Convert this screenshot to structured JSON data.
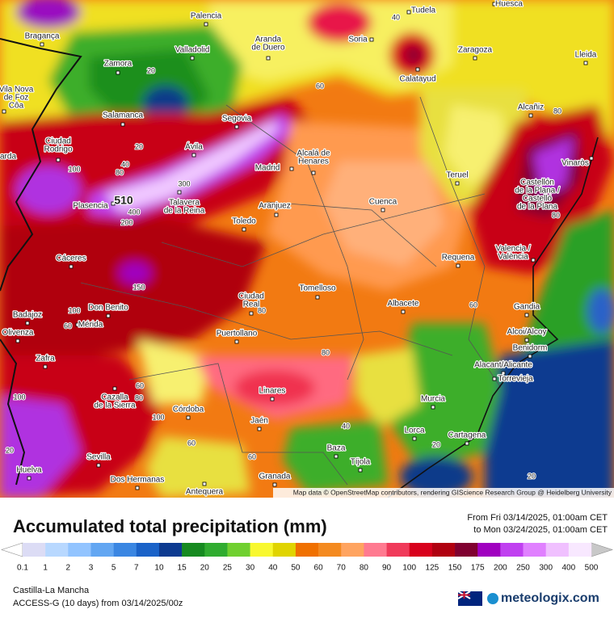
{
  "title": "Accumulated total precipitation (mm)",
  "date_range": [
    "From Fri 03/14/2025, 01:00am CET",
    "to Mon 03/24/2025, 01:00am CET"
  ],
  "region": "Castilla-La Mancha",
  "model_run": "ACCESS-G (10 days) from 03/14/2025/00z",
  "brand": "meteologix.com",
  "attribution": "Map data © OpenStreetMap contributors, rendering GIScience Research Group @ Heidelberg University",
  "legend": {
    "labels": [
      0.1,
      1,
      2,
      3,
      5,
      7,
      10,
      15,
      20,
      25,
      30,
      40,
      50,
      60,
      70,
      80,
      90,
      100,
      125,
      150,
      175,
      200,
      250,
      300,
      400,
      500
    ],
    "colors": [
      "#dcdcf5",
      "#b8d8ff",
      "#92c4ff",
      "#62a6f2",
      "#3a86e2",
      "#1a62c8",
      "#0c3a90",
      "#168a20",
      "#30ac30",
      "#70d030",
      "#f8f830",
      "#e0d400",
      "#f07000",
      "#f48a20",
      "#ffa460",
      "#ff7a90",
      "#f03a5a",
      "#d8001c",
      "#b00010",
      "#800030",
      "#a000c0",
      "#c040f0",
      "#e080ff",
      "#f0c0ff",
      "#f8e8ff"
    ],
    "under_color": "#ffffff",
    "over_color": "#c8c8c8"
  },
  "cities": [
    [
      "Palencia"
    ],
    [
      "Bragança"
    ],
    [
      "Valladolid"
    ],
    [
      "Aranda",
      "de Duero"
    ],
    [
      "Soria"
    ],
    [
      "Tudela"
    ],
    [
      "Huesca"
    ],
    [
      "Zaragoza"
    ],
    [
      "Lleida"
    ],
    [
      "Zamora"
    ],
    [
      "Vila Nova",
      "de Foz",
      "Côa"
    ],
    [
      "Calatayud"
    ],
    [
      "Salamanca"
    ],
    [
      "Segovia"
    ],
    [
      "Alcañiz"
    ],
    [
      "Ciudad",
      "Rodrigo"
    ],
    [
      "Ávila"
    ],
    [
      "Alcalá de",
      "Henares"
    ],
    [
      "Madrid"
    ],
    [
      "Teruel"
    ],
    [
      "Vinaròs"
    ],
    [
      "Castellón",
      "de la Plana /",
      "Castelló",
      "de la Plana"
    ],
    [
      "Plasencia"
    ],
    [
      "Talavera",
      "de la Reina"
    ],
    [
      "Aranjuez"
    ],
    [
      "Cuenca"
    ],
    [
      "Toledo"
    ],
    [
      "Cáceres"
    ],
    [
      "Requena"
    ],
    [
      "Valencia /",
      "València"
    ],
    [
      "Tomelloso"
    ],
    [
      "Ciudad",
      "Real"
    ],
    [
      "Albacete"
    ],
    [
      "Badajoz"
    ],
    [
      "Don Benito"
    ],
    [
      "Mérida"
    ],
    [
      "Gandia"
    ],
    [
      "Olivenza"
    ],
    [
      "Puertollano"
    ],
    [
      "Alcoi/Alcoy"
    ],
    [
      "Benidorm"
    ],
    [
      "Zafra"
    ],
    [
      "Alacant/Alicante"
    ],
    [
      "Torrevieja"
    ],
    [
      "Linares"
    ],
    [
      "Murcia"
    ],
    [
      "Cazalla",
      "de la Sierra"
    ],
    [
      "Córdoba"
    ],
    [
      "Jaén"
    ],
    [
      "Lorca"
    ],
    [
      "Cartagena"
    ],
    [
      "Baza"
    ],
    [
      "Sevilla"
    ],
    [
      "Tíjola"
    ],
    [
      "Huelva"
    ],
    [
      "Dos Hermanas"
    ],
    [
      "Granada"
    ],
    [
      "Antequera"
    ],
    [
      "arda"
    ]
  ],
  "contour_labels": [
    40,
    20,
    60,
    80,
    20,
    40,
    100,
    80,
    300,
    510,
    400,
    200,
    80,
    150,
    60,
    80,
    100,
    60,
    80,
    60,
    80,
    100,
    100,
    60,
    40,
    20,
    20,
    60,
    20
  ]
}
